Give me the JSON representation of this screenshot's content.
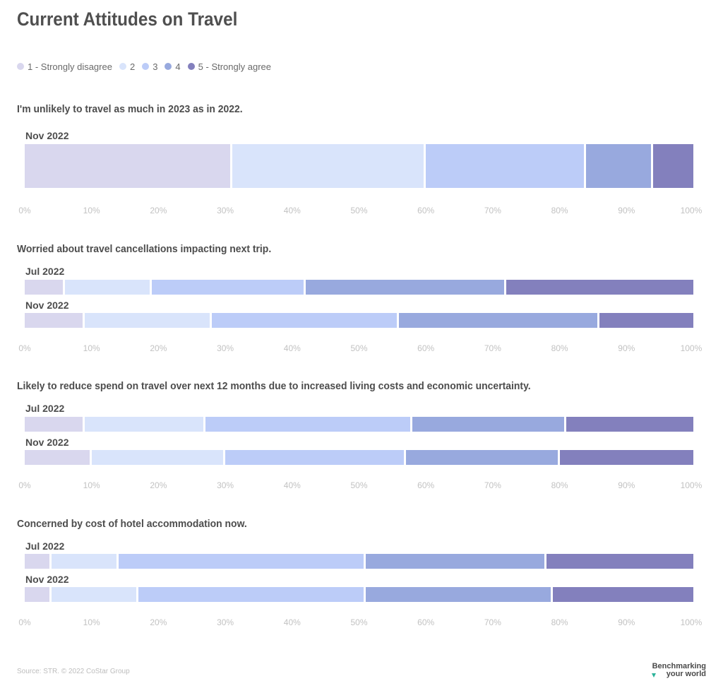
{
  "title": "Current Attitudes on Travel",
  "legend": [
    {
      "label": "1 - Strongly disagree",
      "color": "#d9d7ee"
    },
    {
      "label": "2",
      "color": "#d9e4fb"
    },
    {
      "label": "3",
      "color": "#bcccf8"
    },
    {
      "label": "4",
      "color": "#98a9de"
    },
    {
      "label": "5 - Strongly agree",
      "color": "#8380bd"
    }
  ],
  "chart_data": {
    "type": "bar",
    "orientation": "horizontal",
    "stacked": true,
    "x_ticks": [
      "0%",
      "10%",
      "20%",
      "30%",
      "40%",
      "50%",
      "60%",
      "70%",
      "80%",
      "90%",
      "100%"
    ],
    "xlim": [
      0,
      100
    ],
    "grid": false,
    "legend_position": "top-left",
    "panels": [
      {
        "title": "I'm unlikely to travel as much in 2023 as in 2022.",
        "rows": [
          {
            "label": "Nov 2022",
            "values": [
              31,
              29,
              24,
              10,
              6
            ]
          }
        ]
      },
      {
        "title": "Worried about travel cancellations impacting next trip.",
        "rows": [
          {
            "label": "Jul 2022",
            "values": [
              6,
              13,
              23,
              30,
              28
            ]
          },
          {
            "label": "Nov 2022",
            "values": [
              9,
              19,
              28,
              30,
              14
            ]
          }
        ]
      },
      {
        "title": "Likely to reduce spend on travel over next 12 months due to increased living costs and economic uncertainty.",
        "rows": [
          {
            "label": "Jul 2022",
            "values": [
              9,
              18,
              31,
              23,
              19
            ]
          },
          {
            "label": "Nov 2022",
            "values": [
              10,
              20,
              27,
              23,
              20
            ]
          }
        ]
      },
      {
        "title": "Concerned by cost of hotel accommodation now.",
        "rows": [
          {
            "label": "Jul 2022",
            "values": [
              4,
              10,
              37,
              27,
              22
            ]
          },
          {
            "label": "Nov 2022",
            "values": [
              4,
              13,
              34,
              28,
              21
            ]
          }
        ]
      }
    ]
  },
  "footer": {
    "source": "Source: STR. © 2022 CoStar Group",
    "logo_line1": "Benchmarking",
    "logo_line2": "your world"
  }
}
